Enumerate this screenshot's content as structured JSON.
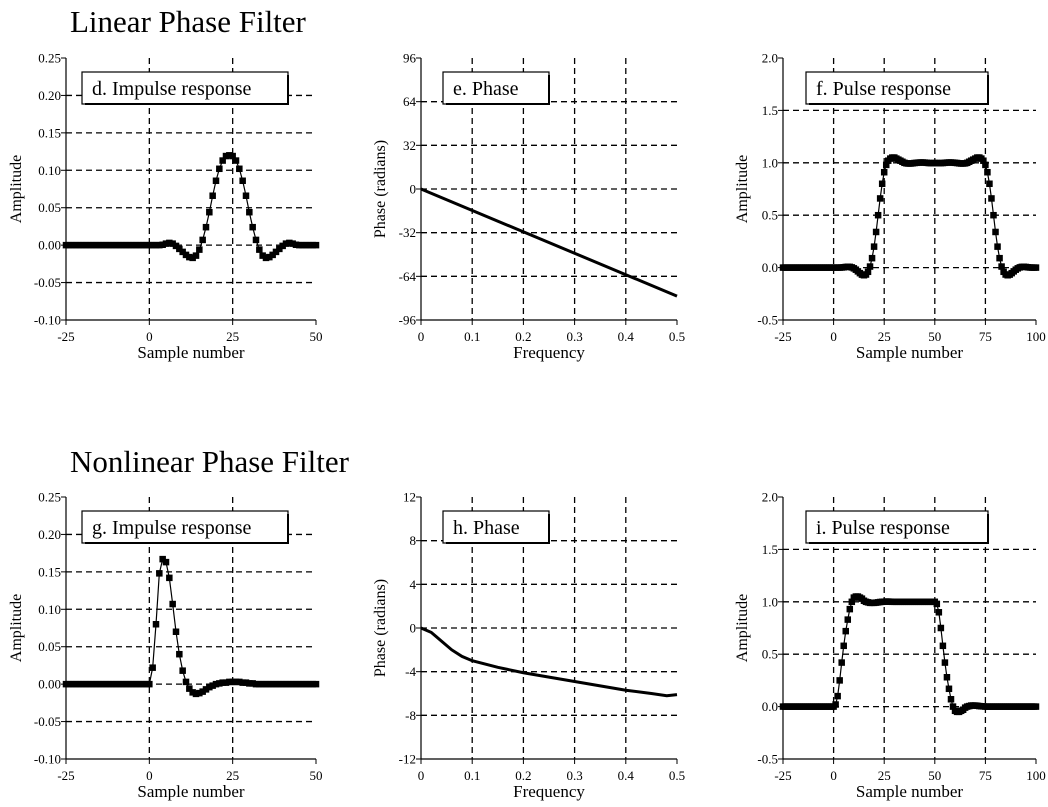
{
  "sections": [
    {
      "title": "Linear Phase Filter"
    },
    {
      "title": "Nonlinear Phase Filter"
    }
  ],
  "chart_data": [
    {
      "type": "scatter",
      "box_label": "d.  Impulse response",
      "xlabel": "Sample number",
      "ylabel": "Amplitude",
      "xlim": [
        -25,
        50
      ],
      "ylim": [
        -0.1,
        0.25
      ],
      "xticks": [
        -25,
        0,
        25,
        50
      ],
      "yticks": [
        -0.1,
        -0.05,
        0,
        0.05,
        0.1,
        0.15,
        0.2,
        0.25
      ],
      "xtick_labels": [
        "-25",
        "0",
        "25",
        "50"
      ],
      "ytick_labels": [
        "-0.10",
        "-0.05",
        "0.00",
        "0.05",
        "0.10",
        "0.15",
        "0.20",
        "0.25"
      ],
      "grid": true,
      "style": "markers-line",
      "x_start": 0,
      "x_step": 1,
      "values": [
        0.0,
        0.0,
        0.0,
        0.0,
        0.0005,
        0.002,
        0.003,
        0.002,
        -0.001,
        -0.005,
        -0.009,
        -0.013,
        -0.016,
        -0.017,
        -0.014,
        -0.006,
        0.007,
        0.024,
        0.044,
        0.066,
        0.086,
        0.102,
        0.113,
        0.119,
        0.12,
        0.119,
        0.113,
        0.102,
        0.086,
        0.066,
        0.044,
        0.024,
        0.007,
        -0.006,
        -0.014,
        -0.017,
        -0.016,
        -0.013,
        -0.009,
        -0.005,
        -0.001,
        0.002,
        0.003,
        0.002,
        0.0005,
        0.0,
        0.0,
        0.0,
        0.0,
        0.0,
        0.0
      ]
    },
    {
      "type": "line",
      "box_label": "e.  Phase",
      "xlabel": "Frequency",
      "ylabel": "Phase (radians)",
      "xlim": [
        0,
        0.5
      ],
      "ylim": [
        -96,
        96
      ],
      "xticks": [
        0,
        0.1,
        0.2,
        0.3,
        0.4,
        0.5
      ],
      "yticks": [
        -96,
        -64,
        -32,
        0,
        32,
        64,
        96
      ],
      "xtick_labels": [
        "0",
        "0.1",
        "0.2",
        "0.3",
        "0.4",
        "0.5"
      ],
      "ytick_labels": [
        "-96",
        "-64",
        "-32",
        "0",
        "32",
        "64",
        "96"
      ],
      "grid": true,
      "x": [
        0,
        0.5
      ],
      "y": [
        0,
        -78.5
      ]
    },
    {
      "type": "scatter",
      "box_label": "f.  Pulse response",
      "xlabel": "Sample number",
      "ylabel": "Amplitude",
      "xlim": [
        -25,
        100
      ],
      "ylim": [
        -0.5,
        2
      ],
      "xticks": [
        -25,
        0,
        25,
        50,
        75,
        100
      ],
      "yticks": [
        -0.5,
        0,
        0.5,
        1,
        1.5,
        2
      ],
      "xtick_labels": [
        "-25",
        "0",
        "25",
        "50",
        "75",
        "100"
      ],
      "ytick_labels": [
        "-0.5",
        "0.0",
        "0.5",
        "1.0",
        "1.5",
        "2.0"
      ],
      "grid": true,
      "style": "markers-line",
      "x_start": 0,
      "x_step": 1,
      "values": [
        0,
        0,
        0,
        0,
        0.001,
        0.003,
        0.006,
        0.008,
        0.007,
        0.002,
        -0.007,
        -0.02,
        -0.036,
        -0.053,
        -0.067,
        -0.073,
        -0.066,
        -0.04,
        0.01,
        0.09,
        0.2,
        0.34,
        0.5,
        0.66,
        0.8,
        0.91,
        0.98,
        1.02,
        1.04,
        1.05,
        1.05,
        1.04,
        1.03,
        1.02,
        1.01,
        1.0,
        0.995,
        0.993,
        0.993,
        0.995,
        0.998,
        1.0,
        1.002,
        1.003,
        1.003,
        1.002,
        1.0,
        0.998,
        0.997,
        0.997,
        0.998,
        0.998,
        0.997,
        0.997,
        0.998,
        1.0,
        1.002,
        1.003,
        1.003,
        1.002,
        1.0,
        0.998,
        0.995,
        0.993,
        0.993,
        0.995,
        1.0,
        1.01,
        1.02,
        1.03,
        1.04,
        1.05,
        1.05,
        1.04,
        1.02,
        0.98,
        0.91,
        0.8,
        0.66,
        0.5,
        0.34,
        0.2,
        0.09,
        0.01,
        -0.04,
        -0.066,
        -0.073,
        -0.067,
        -0.053,
        -0.036,
        -0.02,
        -0.007,
        0.002,
        0.007,
        0.008,
        0.006,
        0.003,
        0.001,
        0,
        0,
        0
      ]
    },
    {
      "type": "scatter",
      "box_label": "g.  Impulse response",
      "xlabel": "Sample number",
      "ylabel": "Amplitude",
      "xlim": [
        -25,
        50
      ],
      "ylim": [
        -0.1,
        0.25
      ],
      "xticks": [
        -25,
        0,
        25,
        50
      ],
      "yticks": [
        -0.1,
        -0.05,
        0,
        0.05,
        0.1,
        0.15,
        0.2,
        0.25
      ],
      "xtick_labels": [
        "-25",
        "0",
        "25",
        "50"
      ],
      "ytick_labels": [
        "-0.10",
        "-0.05",
        "0.00",
        "0.05",
        "0.10",
        "0.15",
        "0.20",
        "0.25"
      ],
      "grid": true,
      "style": "markers-line",
      "x_start": 0,
      "x_step": 1,
      "values": [
        0.0,
        0.022,
        0.08,
        0.148,
        0.167,
        0.163,
        0.142,
        0.107,
        0.07,
        0.04,
        0.018,
        0.003,
        -0.006,
        -0.011,
        -0.013,
        -0.012,
        -0.01,
        -0.007,
        -0.004,
        -0.002,
        0.0,
        0.001,
        0.002,
        0.002,
        0.003,
        0.003,
        0.003,
        0.003,
        0.002,
        0.002,
        0.001,
        0.001,
        0.0,
        0.0,
        0.0,
        0.0,
        0.0,
        0.0,
        0.0,
        0.0,
        0.0,
        0.0,
        0.0,
        0.0,
        0.0,
        0.0,
        0.0,
        0.0,
        0.0,
        0.0,
        0.0
      ]
    },
    {
      "type": "line",
      "box_label": "h.  Phase",
      "xlabel": "Frequency",
      "ylabel": "Phase (radians)",
      "xlim": [
        0,
        0.5
      ],
      "ylim": [
        -12,
        12
      ],
      "xticks": [
        0,
        0.1,
        0.2,
        0.3,
        0.4,
        0.5
      ],
      "yticks": [
        -12,
        -8,
        -4,
        0,
        4,
        8,
        12
      ],
      "xtick_labels": [
        "0",
        "0.1",
        "0.2",
        "0.3",
        "0.4",
        "0.5"
      ],
      "ytick_labels": [
        "-12",
        "-8",
        "-4",
        "0",
        "4",
        "8",
        "12"
      ],
      "grid": true,
      "x": [
        0,
        0.02,
        0.04,
        0.06,
        0.08,
        0.1,
        0.15,
        0.2,
        0.25,
        0.3,
        0.35,
        0.4,
        0.45,
        0.48,
        0.5
      ],
      "y": [
        0,
        -0.4,
        -1.2,
        -2.0,
        -2.6,
        -3.0,
        -3.6,
        -4.1,
        -4.5,
        -4.9,
        -5.3,
        -5.7,
        -6.0,
        -6.2,
        -6.1
      ]
    },
    {
      "type": "scatter",
      "box_label": "i.  Pulse response",
      "xlabel": "Sample number",
      "ylabel": "Amplitude",
      "xlim": [
        -25,
        100
      ],
      "ylim": [
        -0.5,
        2
      ],
      "xticks": [
        -25,
        0,
        25,
        50,
        75,
        100
      ],
      "yticks": [
        -0.5,
        0,
        0.5,
        1,
        1.5,
        2
      ],
      "xtick_labels": [
        "-25",
        "0",
        "25",
        "50",
        "75",
        "100"
      ],
      "ytick_labels": [
        "-0.5",
        "0.0",
        "0.5",
        "1.0",
        "1.5",
        "2.0"
      ],
      "grid": true,
      "style": "markers-line",
      "x_start": 0,
      "x_step": 1,
      "values": [
        0,
        0.02,
        0.1,
        0.25,
        0.42,
        0.58,
        0.72,
        0.83,
        0.93,
        1.0,
        1.04,
        1.05,
        1.05,
        1.04,
        1.03,
        1.01,
        1.0,
        0.995,
        0.99,
        0.99,
        0.99,
        0.992,
        0.995,
        0.998,
        1.0,
        1.001,
        1.002,
        1.002,
        1.001,
        1.0,
        1.0,
        1.0,
        1.0,
        1.0,
        1.0,
        1.0,
        1.0,
        1.0,
        1.0,
        1.0,
        1.0,
        1.0,
        1.0,
        1.0,
        1.0,
        1.0,
        1.0,
        1.0,
        1.0,
        1.0,
        1.0,
        0.98,
        0.9,
        0.75,
        0.58,
        0.42,
        0.28,
        0.17,
        0.07,
        0.0,
        -0.04,
        -0.05,
        -0.05,
        -0.04,
        -0.03,
        -0.01,
        0.0,
        0.005,
        0.01,
        0.01,
        0.01,
        0.008,
        0.005,
        0.003,
        0.002,
        0,
        0,
        0,
        0,
        0,
        0,
        0,
        0,
        0,
        0,
        0,
        0,
        0,
        0,
        0,
        0,
        0,
        0,
        0,
        0,
        0,
        0,
        0,
        0,
        0,
        0
      ]
    }
  ]
}
